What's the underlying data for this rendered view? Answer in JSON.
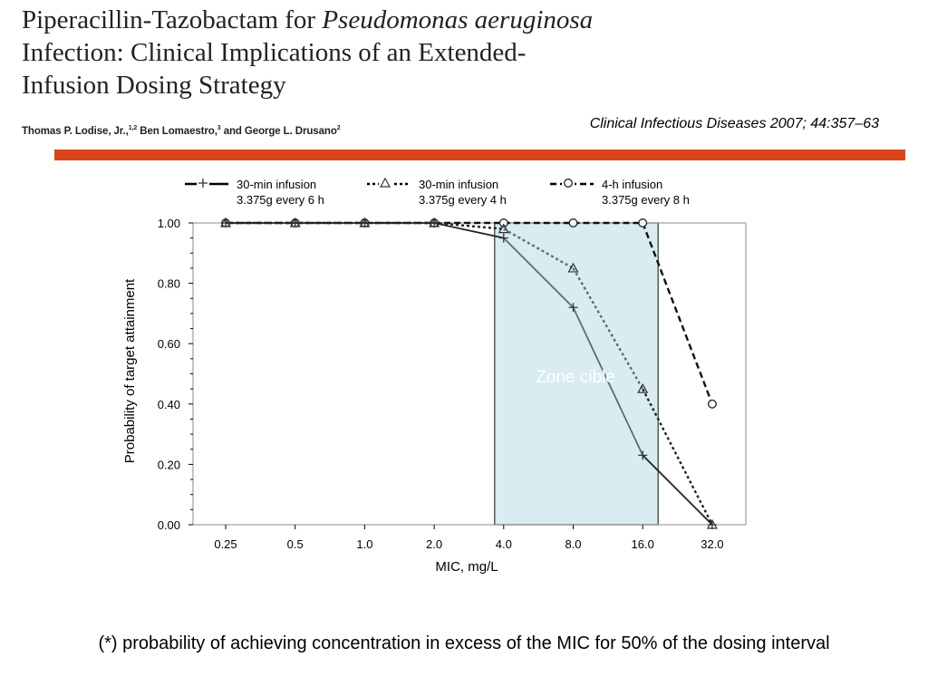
{
  "header": {
    "title_line1_plain": "Piperacillin-Tazobactam for ",
    "title_line1_italic": "Pseudomonas aeruginosa",
    "title_line2": "Infection: Clinical Implications of an Extended-",
    "title_line3": "Infusion Dosing Strategy",
    "authors_name1": "Thomas P. Lodise, Jr.,",
    "authors_sup1": "1,2",
    "authors_name2": " Ben Lomaestro,",
    "authors_sup2": "3",
    "authors_name3": " and George L. Drusano",
    "authors_sup3": "2",
    "citation": "Clinical Infectious Diseases 2007; 44:357–63",
    "accent_color": "#d9461c"
  },
  "chart_data": {
    "type": "line",
    "title": "",
    "xlabel": "MIC, mg/L",
    "ylabel": "Probability of target attainment",
    "categories": [
      "0.25",
      "0.5",
      "1.0",
      "2.0",
      "4.0",
      "8.0",
      "16.0",
      "32.0"
    ],
    "yticks": [
      "0.00",
      "0.20",
      "0.40",
      "0.60",
      "0.80",
      "1.00"
    ],
    "ylim": [
      0,
      1
    ],
    "grid": false,
    "legend_position": "top",
    "series": [
      {
        "name": "30-min infusion 3.375g every 6 h",
        "legend_line1": "30-min infusion",
        "legend_line2": "3.375g every 6 h",
        "marker": "+",
        "line_style": "solid",
        "values": [
          1.0,
          1.0,
          1.0,
          1.0,
          0.95,
          0.72,
          0.23,
          0.0
        ]
      },
      {
        "name": "30-min infusion 3.375g every 4 h",
        "legend_line1": "30-min infusion",
        "legend_line2": "3.375g every 4 h",
        "marker": "triangle",
        "line_style": "dotted",
        "values": [
          1.0,
          1.0,
          1.0,
          1.0,
          0.98,
          0.85,
          0.45,
          0.0
        ]
      },
      {
        "name": "4-h infusion 3.375g every 8 h",
        "legend_line1": "4-h infusion",
        "legend_line2": "3.375g every 8 h",
        "marker": "circle",
        "line_style": "dashed",
        "values": [
          1.0,
          1.0,
          1.0,
          1.0,
          1.0,
          1.0,
          1.0,
          0.4
        ]
      }
    ],
    "annotation": {
      "label": "Zone cible",
      "from_category": "4.0",
      "to_category": "16.0",
      "fill_color": "#d8ecf1"
    }
  },
  "footnote": "(*) probability of achieving concentration in excess of the MIC for 50% of the dosing interval"
}
